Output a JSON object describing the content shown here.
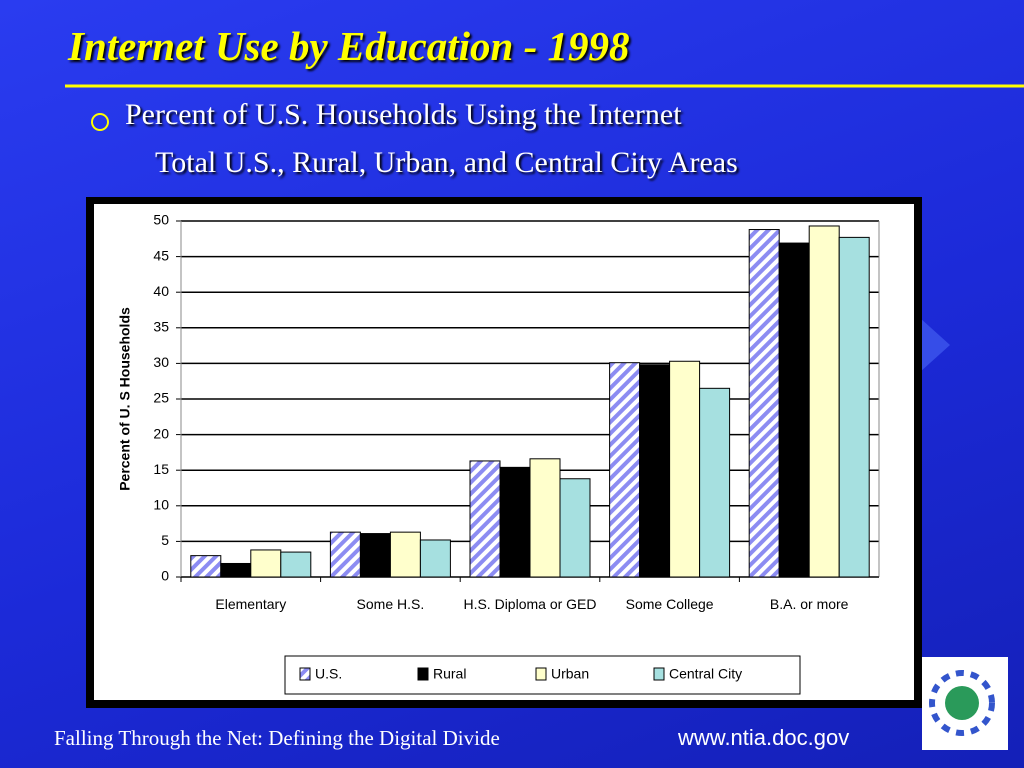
{
  "slide": {
    "title": "Internet Use by Education - 1998",
    "bullet": [
      "Percent of U.S. Households Using the Internet",
      "Total U.S., Rural, Urban, and Central City Areas"
    ],
    "footer": "Falling Through the Net: Defining the Digital Divide",
    "url": "www.ntia.doc.gov"
  },
  "chart_data": {
    "type": "bar",
    "y_label": "Percent of U. S Households",
    "categories": [
      "Elementary",
      "Some H.S.",
      "H.S. Diploma or GED",
      "Some College",
      "B.A. or more"
    ],
    "series": [
      {
        "name": "U.S.",
        "color": "#8c8cf2",
        "pattern": "stripes",
        "values": [
          3.0,
          6.3,
          16.3,
          30.1,
          48.8
        ]
      },
      {
        "name": "Rural",
        "color": "#000000",
        "values": [
          1.9,
          6.1,
          15.4,
          29.8,
          46.9
        ]
      },
      {
        "name": "Urban",
        "color": "#ffffcc",
        "values": [
          3.8,
          6.3,
          16.6,
          30.3,
          49.3
        ]
      },
      {
        "name": "Central City",
        "color": "#a6e0e0",
        "values": [
          3.5,
          5.2,
          13.8,
          26.5,
          47.7
        ]
      }
    ],
    "ylim": [
      0,
      50
    ],
    "yticks": [
      0,
      5,
      10,
      15,
      20,
      25,
      30,
      35,
      40,
      45,
      50
    ],
    "grid": true,
    "legend": "bottom"
  }
}
